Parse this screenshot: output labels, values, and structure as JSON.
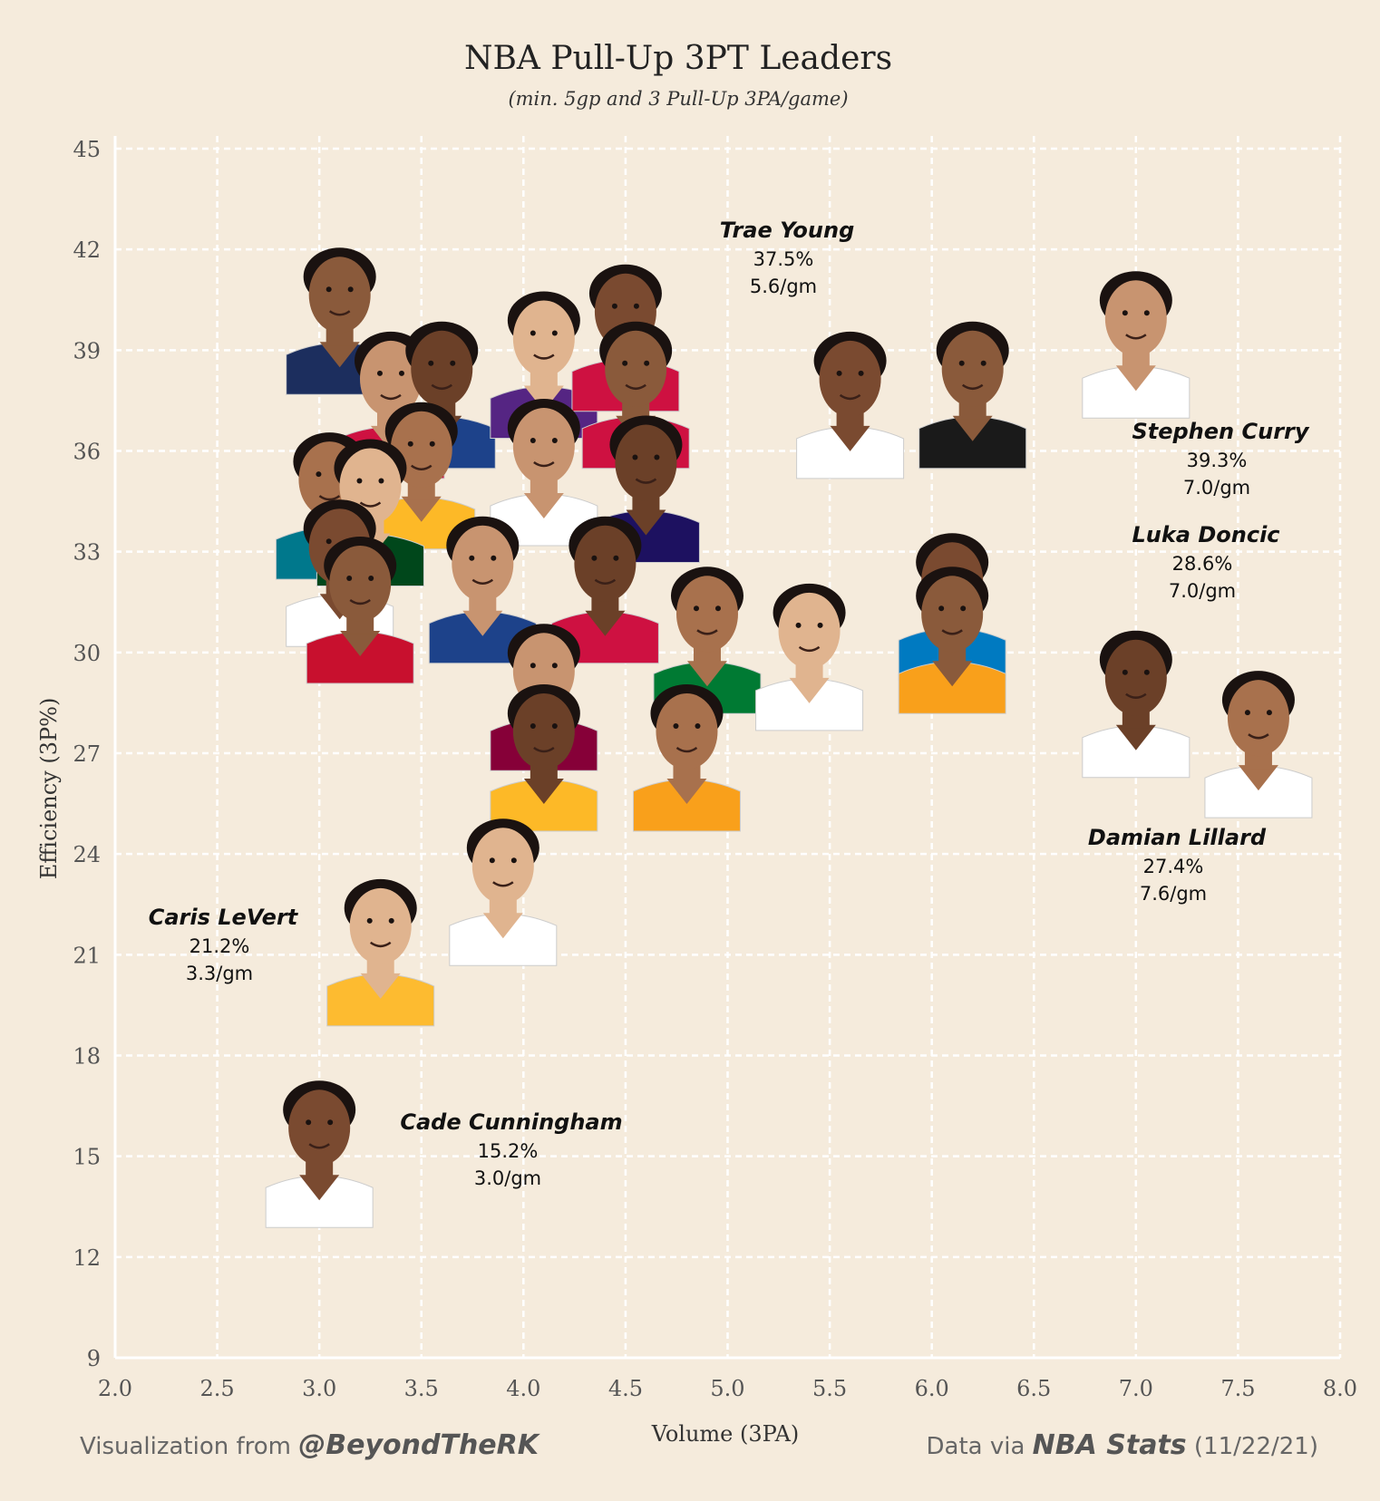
{
  "chart_data": {
    "type": "scatter",
    "title": "NBA Pull-Up 3PT Leaders",
    "subtitle": "(min. 5gp and 3 Pull-Up 3PA/game)",
    "xlabel": "Volume (3PA)",
    "ylabel": "Efficiency (3P%)",
    "xlim": [
      2.0,
      8.0
    ],
    "ylim": [
      9,
      45
    ],
    "x_ticks": [
      "2.0",
      "2.5",
      "3.0",
      "3.5",
      "4.0",
      "4.5",
      "5.0",
      "5.5",
      "6.0",
      "6.5",
      "7.0",
      "7.5",
      "8.0"
    ],
    "y_ticks": [
      "9",
      "12",
      "15",
      "18",
      "21",
      "24",
      "27",
      "30",
      "33",
      "36",
      "39",
      "42",
      "45"
    ],
    "grid": true,
    "points": [
      {
        "x": 3.1,
        "y": 40.0,
        "color": "#1c2e5e"
      },
      {
        "x": 3.35,
        "y": 37.5,
        "color": "#ce1141"
      },
      {
        "x": 3.6,
        "y": 37.8,
        "color": "#1d428a"
      },
      {
        "x": 3.5,
        "y": 35.4,
        "color": "#fdb927"
      },
      {
        "x": 4.1,
        "y": 38.7,
        "color": "#552583"
      },
      {
        "x": 4.5,
        "y": 39.5,
        "color": "#ce1141"
      },
      {
        "x": 4.55,
        "y": 37.8,
        "color": "#ce1141"
      },
      {
        "x": 4.1,
        "y": 35.5,
        "color": "#ffffff"
      },
      {
        "x": 4.6,
        "y": 35.0,
        "color": "#1d1160"
      },
      {
        "x": 3.05,
        "y": 34.5,
        "color": "#00788c"
      },
      {
        "x": 3.25,
        "y": 34.3,
        "color": "#00471b"
      },
      {
        "x": 3.1,
        "y": 32.5,
        "color": "#ffffff"
      },
      {
        "x": 3.2,
        "y": 31.4,
        "color": "#c8102e"
      },
      {
        "x": 3.8,
        "y": 32.0,
        "color": "#1d428a"
      },
      {
        "x": 4.4,
        "y": 32.0,
        "color": "#ce1141"
      },
      {
        "x": 4.9,
        "y": 30.5,
        "color": "#007a33"
      },
      {
        "x": 5.4,
        "y": 30.0,
        "color": "#ffffff"
      },
      {
        "x": 6.1,
        "y": 31.5,
        "color": "#007ac1"
      },
      {
        "x": 6.1,
        "y": 30.5,
        "color": "#f9a01b"
      },
      {
        "x": 4.1,
        "y": 28.8,
        "color": "#860038"
      },
      {
        "x": 4.1,
        "y": 27.0,
        "color": "#fdb927"
      },
      {
        "x": 4.8,
        "y": 27.0,
        "color": "#f9a01b"
      },
      {
        "x": 3.9,
        "y": 23.0,
        "color": "#ffffff"
      },
      {
        "x": 5.6,
        "y": 37.5,
        "color": "#ffffff"
      },
      {
        "x": 6.2,
        "y": 37.8,
        "color": "#1a1a1a"
      },
      {
        "x": 7.0,
        "y": 39.3,
        "color": "#ffffff"
      },
      {
        "x": 7.0,
        "y": 28.6,
        "color": "#ffffff"
      },
      {
        "x": 7.6,
        "y": 27.4,
        "color": "#ffffff"
      },
      {
        "x": 3.3,
        "y": 21.2,
        "color": "#fdbb30"
      },
      {
        "x": 3.0,
        "y": 15.2,
        "color": "#ffffff"
      }
    ],
    "callouts": [
      {
        "name": "Trae Young",
        "pct": "37.5%",
        "vol": "5.6/gm"
      },
      {
        "name": "Stephen Curry",
        "pct": "39.3%",
        "vol": "7.0/gm"
      },
      {
        "name": "Luka Doncic",
        "pct": "28.6%",
        "vol": "7.0/gm"
      },
      {
        "name": "Damian Lillard",
        "pct": "27.4%",
        "vol": "7.6/gm"
      },
      {
        "name": "Caris LeVert",
        "pct": "21.2%",
        "vol": "3.3/gm"
      },
      {
        "name": "Cade Cunningham",
        "pct": "15.2%",
        "vol": "3.0/gm"
      }
    ]
  },
  "footer": {
    "left_prefix": "Visualization from ",
    "left_handle": "@BeyondTheRK",
    "right_prefix": "Data via ",
    "right_source": "NBA Stats",
    "right_date": " (11/22/21)"
  }
}
